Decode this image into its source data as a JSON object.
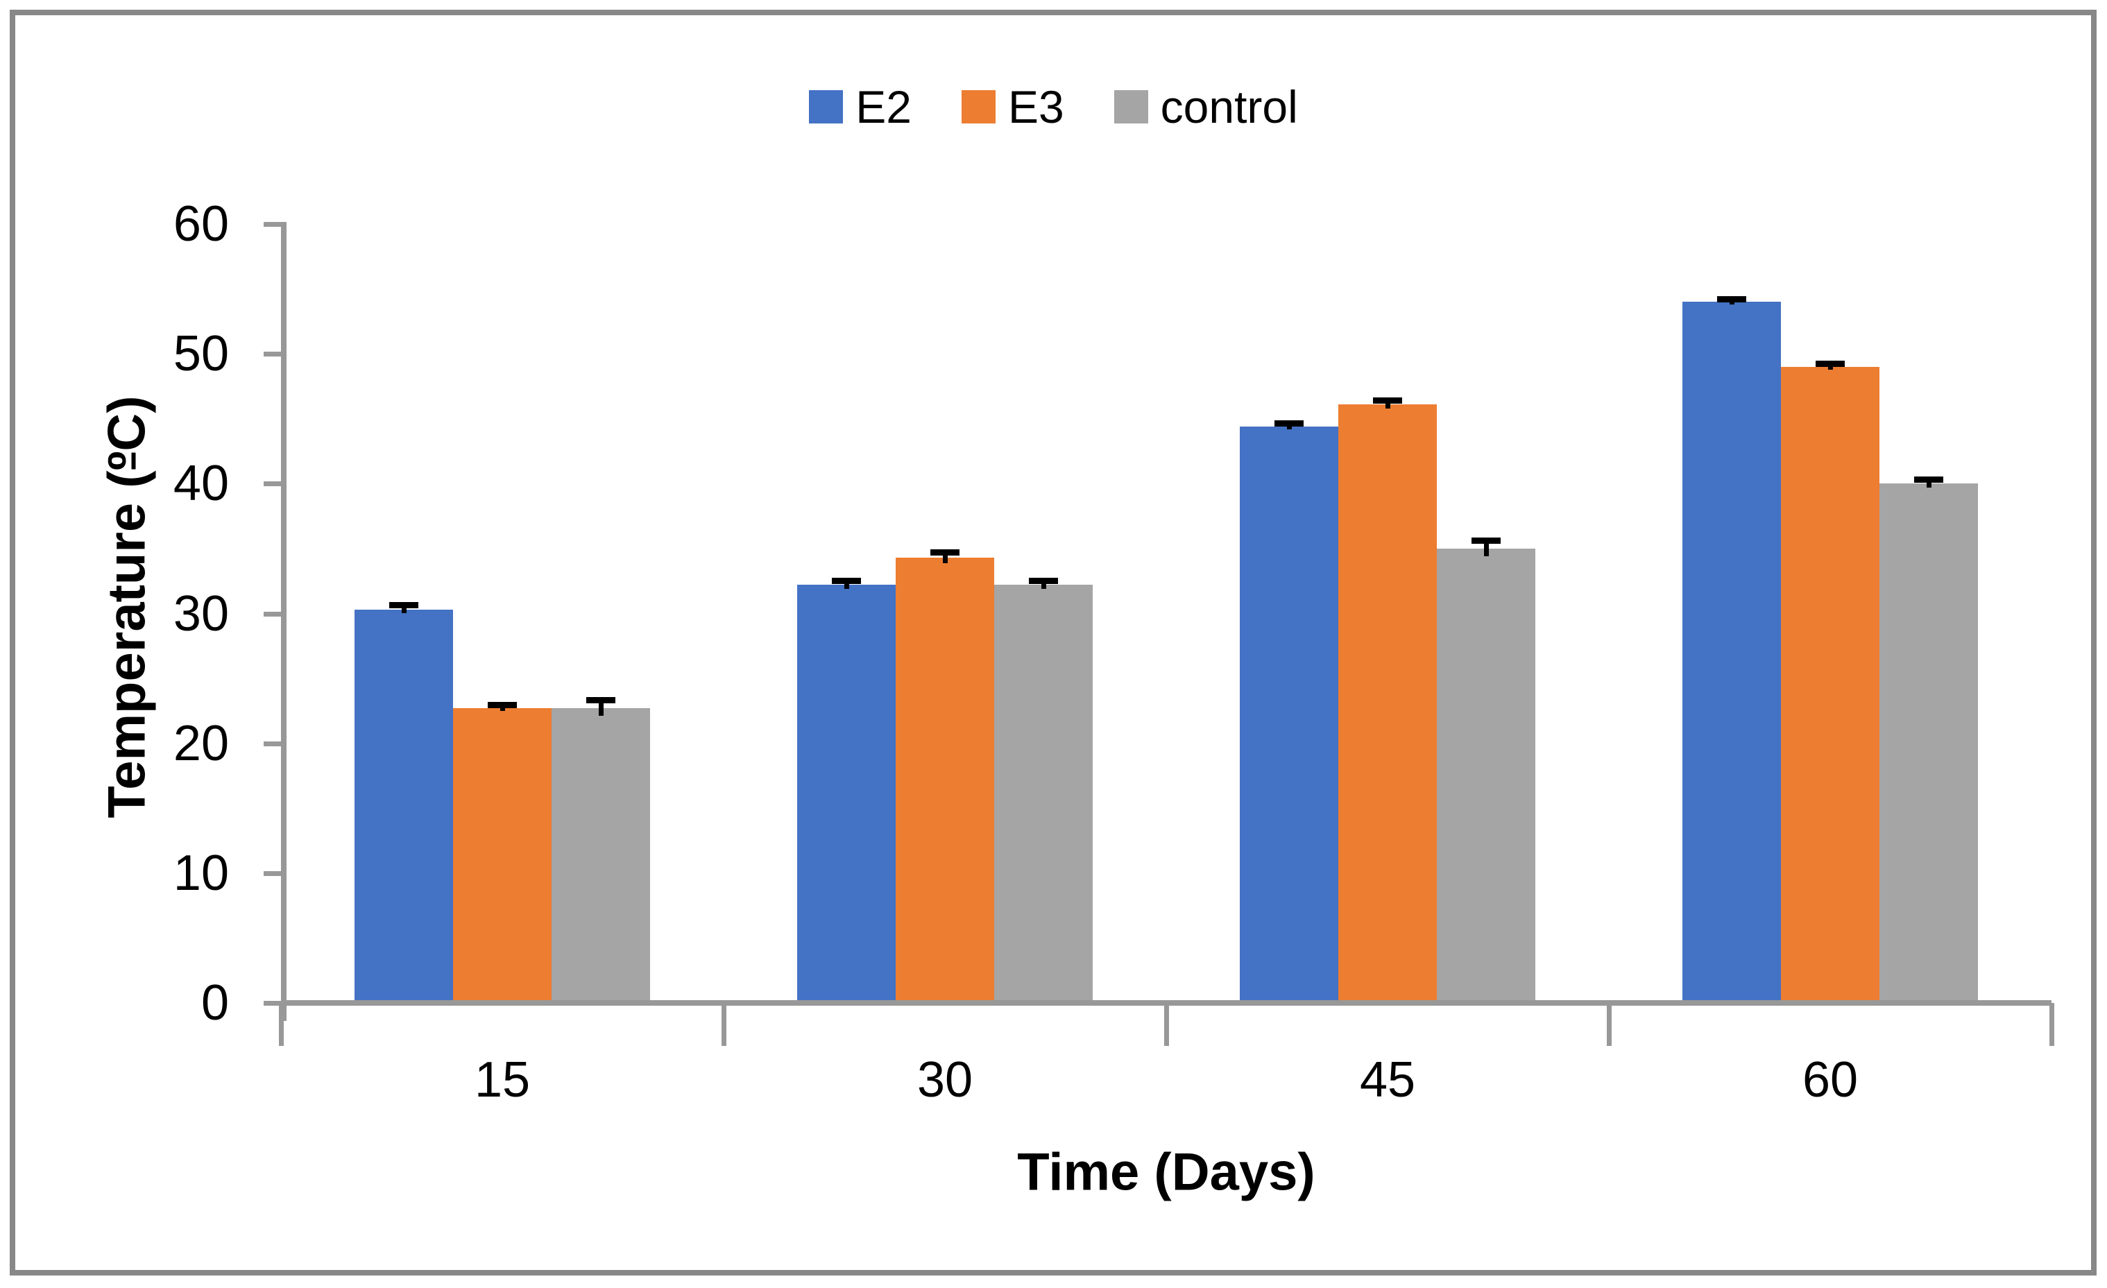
{
  "chart_data": {
    "type": "bar",
    "title": "",
    "categories": [
      "15",
      "30",
      "45",
      "60"
    ],
    "series": [
      {
        "name": "E2",
        "color": "#4472C4",
        "values": [
          30.3,
          32.2,
          44.4,
          54.0
        ],
        "errors": [
          0.3,
          0.3,
          0.2,
          0.2
        ]
      },
      {
        "name": "E3",
        "color": "#ED7D31",
        "values": [
          22.7,
          34.3,
          46.1,
          49.0
        ],
        "errors": [
          0.2,
          0.4,
          0.3,
          0.2
        ]
      },
      {
        "name": "control",
        "color": "#A5A5A5",
        "values": [
          22.7,
          32.2,
          35.0,
          40.0
        ],
        "errors": [
          0.6,
          0.3,
          0.6,
          0.3
        ]
      }
    ],
    "xlabel": "Time (Days)",
    "ylabel": "Temperature (ºC)",
    "ylabel_parts": [
      "Temperature (",
      "º",
      "C)"
    ],
    "ylim": [
      0,
      60
    ],
    "ytick_step": 10,
    "yticks": [
      "0",
      "10",
      "20",
      "30",
      "40",
      "50",
      "60"
    ],
    "legend_position": "top-center",
    "grid": false,
    "error_bars": true
  },
  "colors": {
    "axis": "#989898",
    "frame": "#888888",
    "error_bar": "#000000",
    "text": "#000000",
    "background": "#FFFFFF"
  }
}
